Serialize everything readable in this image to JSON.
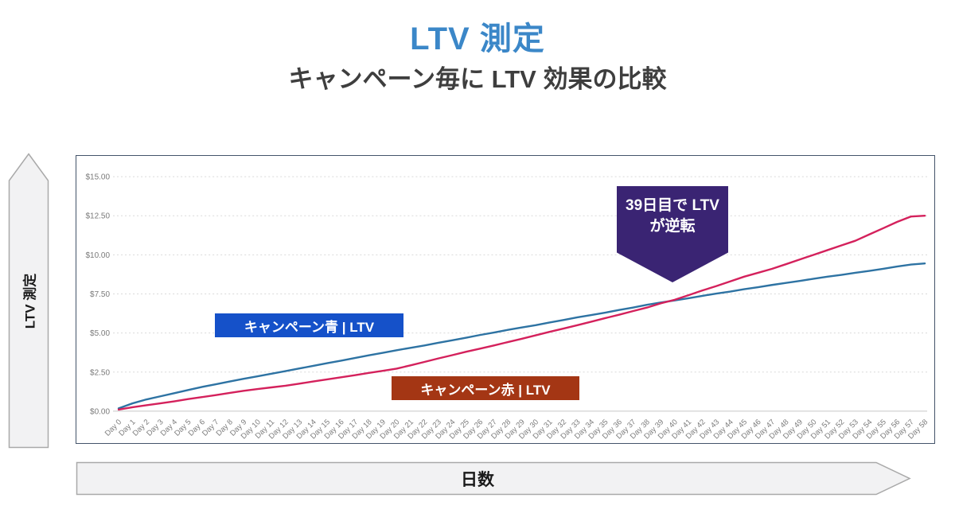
{
  "header": {
    "title": "LTV 測定",
    "subtitle": "キャンペーン毎に LTV 効果の比較"
  },
  "decor_arrows": {
    "y_arrow_label": "LTV 測定",
    "x_arrow_label": "日数"
  },
  "annotations": {
    "crossover": {
      "line1": "39日目で LTV",
      "line2": "が逆転",
      "day": 39,
      "bg": "#3a2473"
    },
    "series_labels": [
      {
        "text": "キャンペーン青 | LTV",
        "bg": "#1551c9"
      },
      {
        "text": "キャンペーン赤 | LTV",
        "bg": "#a43614"
      }
    ]
  },
  "colors": {
    "title": "#3b87c8",
    "subtitle": "#3e3e3e",
    "chart_border": "#44546a",
    "gridline": "#d9d9d9",
    "baseline": "#c6c6c6",
    "axis_text": "#7a7a7a",
    "arrow_fill": "#f2f2f3",
    "arrow_stroke": "#a9a9a9"
  },
  "chart_data": {
    "type": "line",
    "title": "LTV 測定",
    "xlabel": "日数",
    "ylabel": "LTV 測定",
    "ylim": [
      0,
      15
    ],
    "grid": true,
    "legend_position": "inline-labels-on-plot",
    "y_ticks": [
      {
        "value": 0,
        "label": "$0.00"
      },
      {
        "value": 2.5,
        "label": "$2.50"
      },
      {
        "value": 5,
        "label": "$5.00"
      },
      {
        "value": 7.5,
        "label": "$7.50"
      },
      {
        "value": 10,
        "label": "$10.00"
      },
      {
        "value": 12.5,
        "label": "$12.50"
      },
      {
        "value": 15,
        "label": "$15.00"
      }
    ],
    "categories": [
      "Day 0",
      "Day 1",
      "Day 2",
      "Day 3",
      "Day 4",
      "Day 5",
      "Day 6",
      "Day 7",
      "Day 8",
      "Day 9",
      "Day 10",
      "Day 11",
      "Day 12",
      "Day 13",
      "Day 14",
      "Day 15",
      "Day 16",
      "Day 17",
      "Day 18",
      "Day 19",
      "Day 20",
      "Day 21",
      "Day 22",
      "Day 23",
      "Day 24",
      "Day 25",
      "Day 26",
      "Day 27",
      "Day 28",
      "Day 29",
      "Day 30",
      "Day 31",
      "Day 32",
      "Day 33",
      "Day 34",
      "Day 35",
      "Day 36",
      "Day 37",
      "Day 38",
      "Day 39",
      "Day 40",
      "Day 41",
      "Day 42",
      "Day 43",
      "Day 44",
      "Day 45",
      "Day 46",
      "Day 47",
      "Day 48",
      "Day 49",
      "Day 50",
      "Day 51",
      "Day 52",
      "Day 53",
      "Day 54",
      "Day 55",
      "Day 56",
      "Day 57",
      "Day 58"
    ],
    "series": [
      {
        "name": "キャンペーン青 | LTV",
        "color": "#2e73a3",
        "values": [
          0.18,
          0.5,
          0.75,
          0.95,
          1.15,
          1.35,
          1.55,
          1.72,
          1.9,
          2.07,
          2.23,
          2.4,
          2.56,
          2.73,
          2.9,
          3.07,
          3.23,
          3.4,
          3.57,
          3.73,
          3.9,
          4.05,
          4.2,
          4.37,
          4.53,
          4.7,
          4.87,
          5.03,
          5.2,
          5.35,
          5.5,
          5.67,
          5.83,
          6.0,
          6.15,
          6.3,
          6.47,
          6.63,
          6.8,
          6.95,
          7.08,
          7.22,
          7.38,
          7.52,
          7.65,
          7.8,
          7.93,
          8.07,
          8.2,
          8.33,
          8.47,
          8.6,
          8.72,
          8.85,
          8.97,
          9.1,
          9.25,
          9.38,
          9.45
        ]
      },
      {
        "name": "キャンペーン赤 | LTV",
        "color": "#d4215c",
        "values": [
          0.1,
          0.25,
          0.38,
          0.5,
          0.63,
          0.77,
          0.9,
          1.03,
          1.17,
          1.3,
          1.42,
          1.52,
          1.63,
          1.76,
          1.9,
          2.03,
          2.17,
          2.3,
          2.45,
          2.58,
          2.72,
          2.93,
          3.15,
          3.37,
          3.58,
          3.8,
          4.0,
          4.2,
          4.42,
          4.63,
          4.85,
          5.07,
          5.28,
          5.5,
          5.72,
          5.95,
          6.17,
          6.4,
          6.62,
          6.9,
          7.12,
          7.42,
          7.72,
          8.0,
          8.3,
          8.6,
          8.85,
          9.1,
          9.4,
          9.7,
          10.0,
          10.3,
          10.6,
          10.9,
          11.3,
          11.7,
          12.1,
          12.45,
          12.5
        ]
      }
    ]
  }
}
